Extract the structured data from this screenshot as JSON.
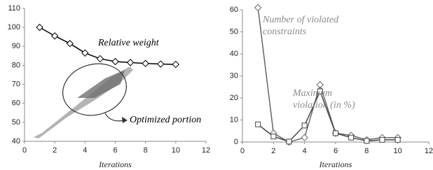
{
  "chart_data": [
    {
      "type": "line",
      "x_label": "Iterations",
      "xlim": [
        0,
        12
      ],
      "xticks": [
        0,
        2,
        4,
        6,
        8,
        10,
        12
      ],
      "ylim": [
        40,
        110
      ],
      "yticks": [
        40,
        50,
        60,
        70,
        80,
        90,
        100,
        110
      ],
      "series": [
        {
          "color": "#000000",
          "marker": "diamond",
          "x": [
            1,
            2,
            3,
            4,
            5,
            6,
            7,
            8,
            9,
            10
          ],
          "values": [
            100,
            95.5,
            91.5,
            86.5,
            83.5,
            82,
            81.5,
            81,
            80.7,
            80.5
          ]
        }
      ],
      "annotations": [
        {
          "lines": [
            "Relative weight"
          ],
          "color": "#000000"
        },
        {
          "lines": [
            "Optimized portion"
          ],
          "color": "#000000"
        }
      ]
    },
    {
      "type": "line",
      "x_label": "Iterations",
      "xlim": [
        0,
        12
      ],
      "xticks": [
        0,
        2,
        4,
        6,
        8,
        10,
        12
      ],
      "ylim": [
        0,
        60
      ],
      "yticks": [
        0,
        10,
        20,
        30,
        40,
        50,
        60
      ],
      "series": [
        {
          "color": "#666666",
          "marker": "diamond",
          "x": [
            1,
            2,
            3,
            4,
            5,
            6,
            7,
            8,
            9,
            10
          ],
          "values": [
            61,
            4,
            0,
            2,
            26,
            4,
            3,
            1,
            2,
            2
          ]
        },
        {
          "color": "#444444",
          "marker": "square",
          "x": [
            1,
            2,
            3,
            4,
            5,
            6,
            7,
            8,
            9,
            10
          ],
          "values": [
            8,
            2.5,
            0.2,
            7.5,
            23,
            4,
            2,
            0.5,
            1,
            1
          ]
        }
      ],
      "annotations": [
        {
          "lines": [
            "Number of violated",
            "constraints"
          ],
          "color": "#8a8a8a"
        },
        {
          "lines": [
            "Maximum",
            "violation (in %)"
          ],
          "color": "#8a8a8a"
        }
      ]
    }
  ]
}
